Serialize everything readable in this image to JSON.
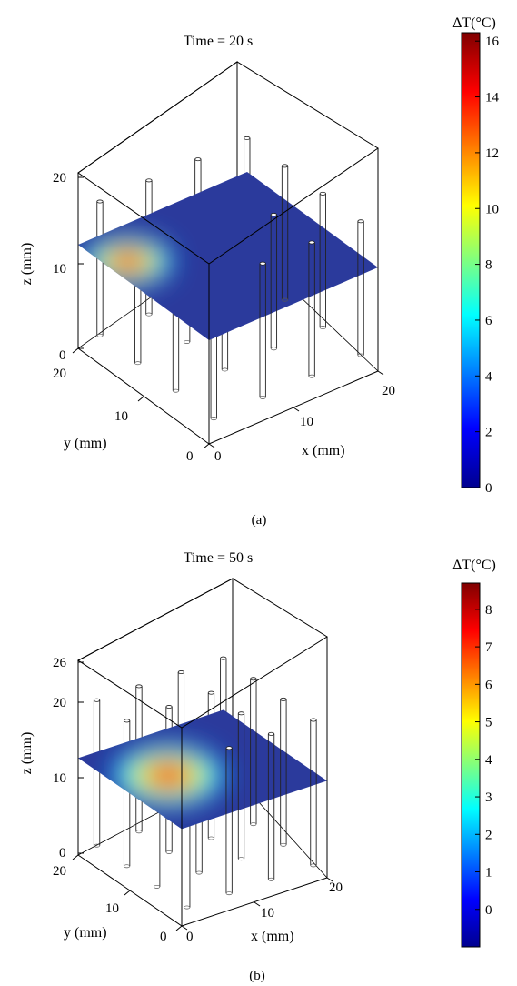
{
  "chart_data": [
    {
      "type": "heatmap",
      "panel_label": "(a)",
      "title": "Time = 20 s",
      "xlabel": "x (mm)",
      "ylabel": "y (mm)",
      "zlabel": "z (mm)",
      "x_ticks": [
        "0",
        "10",
        "20"
      ],
      "y_ticks": [
        "0",
        "10",
        "20"
      ],
      "z_ticks": [
        "0",
        "10",
        "20"
      ],
      "slice_plane_z": 12,
      "hotspot": {
        "x": 2,
        "y": 15,
        "peak": 16.3,
        "spread": 3.5
      },
      "colorbar": {
        "title": "ΔT(°C)",
        "min": 0,
        "max": 16.3,
        "ticks": [
          "0",
          "2",
          "4",
          "6",
          "8",
          "10",
          "12",
          "14",
          "16"
        ],
        "tick_values": [
          0,
          2,
          4,
          6,
          8,
          10,
          12,
          14,
          16
        ]
      }
    },
    {
      "type": "heatmap",
      "panel_label": "(b)",
      "title": "Time = 50 s",
      "xlabel": "x (mm)",
      "ylabel": "y (mm)",
      "zlabel": "z (mm)",
      "x_ticks": [
        "0",
        "10",
        "20"
      ],
      "y_ticks": [
        "0",
        "10",
        "20"
      ],
      "z_ticks": [
        "0",
        "10",
        "20",
        "26"
      ],
      "slice_plane_z": 13,
      "hotspot": {
        "x": 6,
        "y": 11,
        "peak": 8.7,
        "spread": 4.5
      },
      "colorbar": {
        "title": "ΔT(°C)",
        "min": -1,
        "max": 8.7,
        "ticks": [
          "0",
          "1",
          "2",
          "3",
          "4",
          "5",
          "6",
          "7",
          "8"
        ],
        "tick_values": [
          0,
          1,
          2,
          3,
          4,
          5,
          6,
          7,
          8
        ]
      }
    }
  ],
  "colors": {
    "jet": [
      "#00008f",
      "#0000ff",
      "#00ffff",
      "#ffff00",
      "#ff0000",
      "#800000"
    ],
    "plane_base": "#2b3a9c",
    "box": "#000000"
  }
}
